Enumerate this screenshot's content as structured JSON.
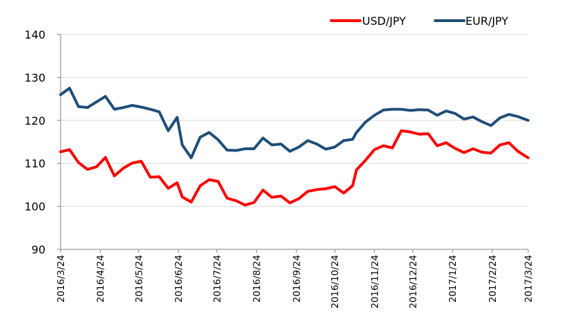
{
  "chart_data": {
    "type": "line",
    "title": "",
    "xlabel": "",
    "ylabel": "",
    "ylim": [
      90,
      140
    ],
    "yticks": [
      90,
      100,
      110,
      120,
      130,
      140
    ],
    "grid": "horizontal",
    "legend_position": "top-right",
    "x_tick_labels": [
      "2016/3/24",
      "2016/4/24",
      "2016/5/24",
      "2016/6/24",
      "2016/7/24",
      "2016/8/24",
      "2016/9/24",
      "2016/10/24",
      "2016/11/24",
      "2016/12/24",
      "2017/1/24",
      "2017/2/24",
      "2017/3/24"
    ],
    "x": [
      "2016/3/24",
      "2016/3/31",
      "2016/4/7",
      "2016/4/14",
      "2016/4/21",
      "2016/4/28",
      "2016/5/5",
      "2016/5/12",
      "2016/5/19",
      "2016/5/26",
      "2016/6/2",
      "2016/6/9",
      "2016/6/16",
      "2016/6/23",
      "2016/6/27",
      "2016/7/4",
      "2016/7/11",
      "2016/7/18",
      "2016/7/25",
      "2016/8/1",
      "2016/8/8",
      "2016/8/15",
      "2016/8/22",
      "2016/8/29",
      "2016/9/5",
      "2016/9/12",
      "2016/9/19",
      "2016/9/26",
      "2016/10/3",
      "2016/10/10",
      "2016/10/17",
      "2016/10/24",
      "2016/10/31",
      "2016/11/7",
      "2016/11/10",
      "2016/11/17",
      "2016/11/24",
      "2016/12/1",
      "2016/12/8",
      "2016/12/15",
      "2016/12/22",
      "2016/12/29",
      "2017/1/5",
      "2017/1/12",
      "2017/1/19",
      "2017/1/26",
      "2017/2/2",
      "2017/2/9",
      "2017/2/16",
      "2017/2/23",
      "2017/3/2",
      "2017/3/9",
      "2017/3/16",
      "2017/3/24"
    ],
    "series": [
      {
        "name": "USD/JPY",
        "color": "#ff0000",
        "values": [
          112.7,
          113.2,
          110.2,
          108.6,
          109.2,
          111.4,
          107.1,
          108.9,
          110.1,
          110.5,
          106.8,
          106.9,
          104.2,
          105.5,
          102.2,
          101.0,
          104.8,
          106.2,
          105.8,
          101.9,
          101.3,
          100.3,
          100.9,
          103.8,
          102.1,
          102.4,
          100.8,
          101.8,
          103.5,
          103.9,
          104.1,
          104.6,
          103.1,
          104.8,
          108.5,
          110.7,
          113.2,
          114.1,
          113.6,
          117.6,
          117.3,
          116.8,
          116.9,
          114.1,
          114.8,
          113.5,
          112.5,
          113.4,
          112.6,
          112.4,
          114.3,
          114.8,
          112.8,
          111.3
        ],
        "labels": []
      },
      {
        "name": "EUR/JPY",
        "color": "#1f4e79",
        "values": [
          126.0,
          127.5,
          123.2,
          123.0,
          124.3,
          125.6,
          122.6,
          123.0,
          123.5,
          123.1,
          122.6,
          122.0,
          117.6,
          120.7,
          114.3,
          111.3,
          116.1,
          117.2,
          115.5,
          113.1,
          113.0,
          113.4,
          113.4,
          115.9,
          114.3,
          114.5,
          112.8,
          113.8,
          115.3,
          114.5,
          113.3,
          113.8,
          115.3,
          115.6,
          117.2,
          119.6,
          121.2,
          122.4,
          122.6,
          122.6,
          122.3,
          122.5,
          122.4,
          121.2,
          122.2,
          121.6,
          120.3,
          120.8,
          119.7,
          118.8,
          120.6,
          121.4,
          120.9,
          120.0
        ],
        "labels": []
      }
    ]
  }
}
